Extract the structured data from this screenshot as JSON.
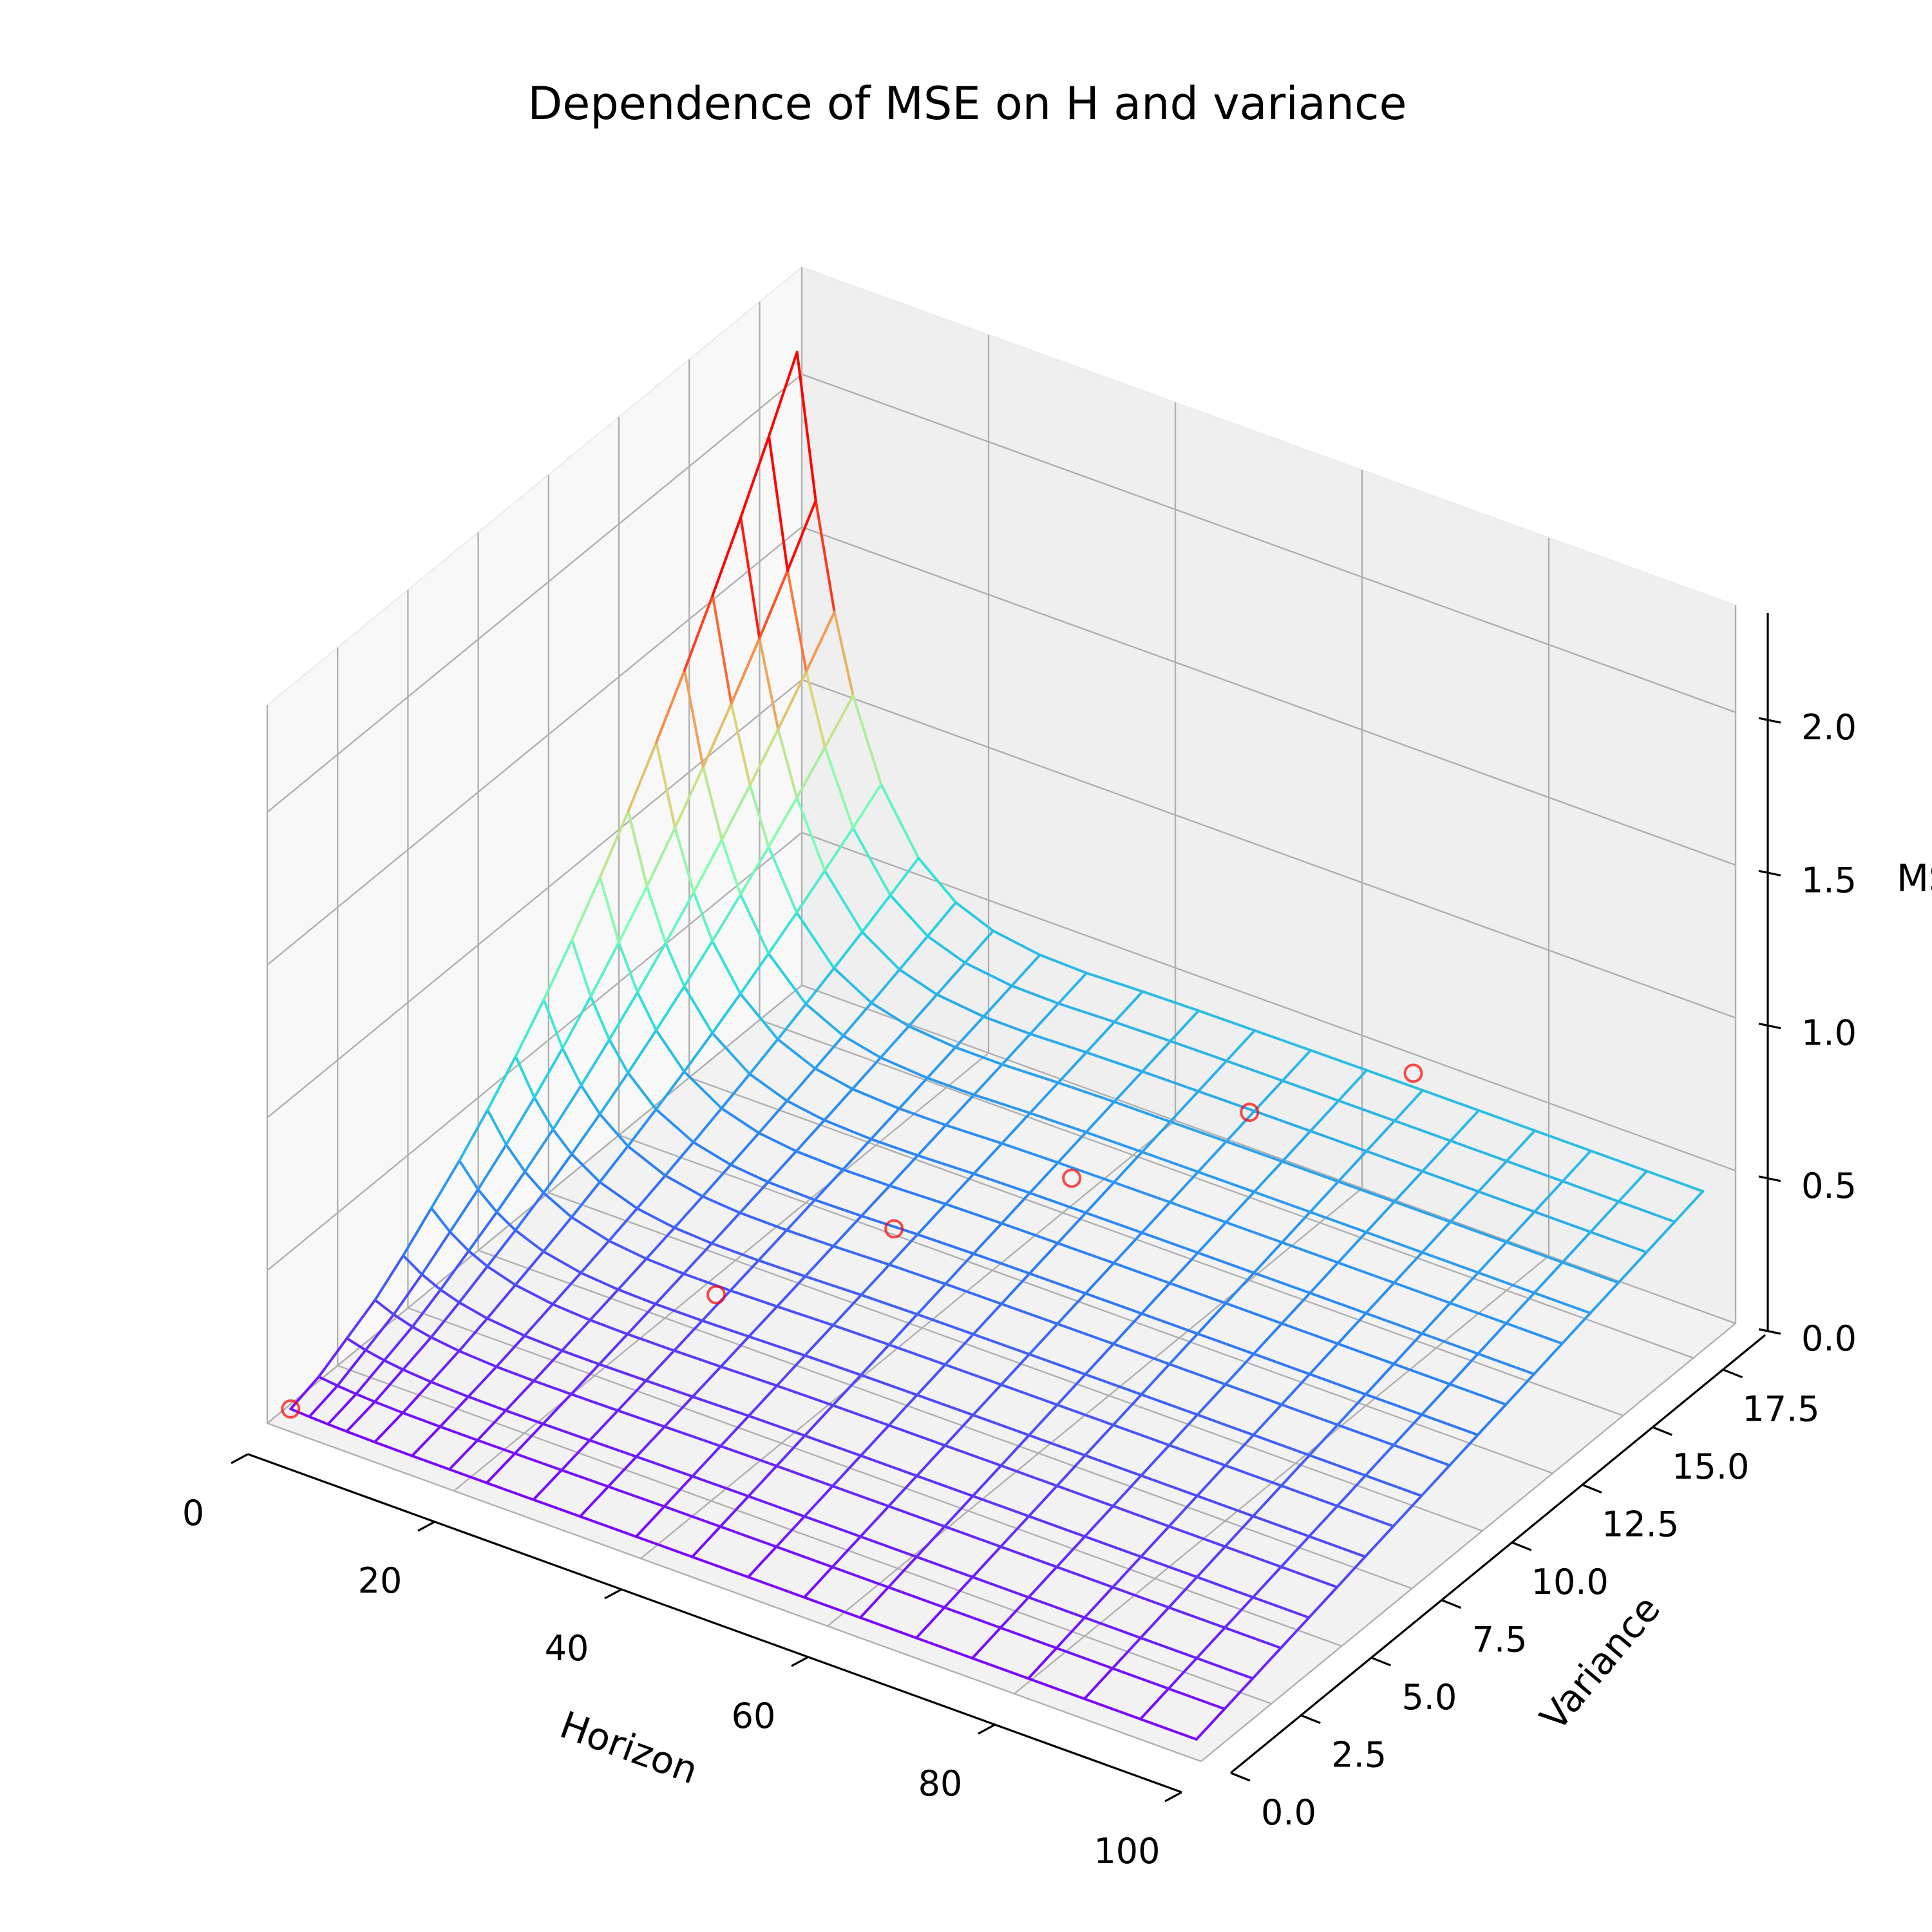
{
  "chart_data": {
    "type": "surface-3d",
    "title": "Dependence of MSE on H and variance",
    "xlabel": "Horizon",
    "ylabel": "Variance",
    "zlabel": "MSE",
    "xlim": [
      0,
      100
    ],
    "ylim": [
      0,
      19
    ],
    "zlim": [
      0,
      2.35
    ],
    "x_ticks": [
      "0",
      "20",
      "40",
      "60",
      "80",
      "100"
    ],
    "x_tick_values": [
      0,
      20,
      40,
      60,
      80,
      100
    ],
    "y_ticks": [
      "0.0",
      "2.5",
      "5.0",
      "7.5",
      "10.0",
      "12.5",
      "15.0",
      "17.5"
    ],
    "y_tick_values": [
      0,
      2.5,
      5,
      7.5,
      10,
      12.5,
      15,
      17.5
    ],
    "z_ticks": [
      "0.0",
      "0.5",
      "1.0",
      "1.5",
      "2.0"
    ],
    "z_tick_values": [
      0,
      0.5,
      1.0,
      1.5,
      2.0
    ],
    "grid": true,
    "colormap": "rainbow",
    "colormap_stops": [
      "#8000ff",
      "#2c7ef7",
      "#2adddd",
      "#80ffb4",
      "#d4dd80",
      "#ff7f40",
      "#ff0000"
    ],
    "color_range": [
      0,
      1.6
    ],
    "surface": {
      "horizon": [
        1,
        3,
        5,
        7,
        10,
        14,
        18,
        22,
        27,
        32,
        38,
        44,
        50,
        56,
        62,
        68,
        74,
        80,
        86,
        92,
        98
      ],
      "variance": [
        0.5,
        1.5,
        2.5,
        3.5,
        4.5,
        5.5,
        6.5,
        7.5,
        8.5,
        9.5,
        10.5,
        11.5,
        12.5,
        13.5,
        14.5,
        15.5,
        16.5,
        17.5,
        18.5
      ],
      "mse_peak_at_h1_by_variance": [
        0.02,
        0.05,
        0.1,
        0.15,
        0.22,
        0.3,
        0.38,
        0.47,
        0.57,
        0.68,
        0.8,
        0.93,
        1.07,
        1.22,
        1.38,
        1.55,
        1.73,
        1.92,
        2.12
      ],
      "mse_tail_at_h100": 0.4
    },
    "scatter_points": {
      "color": "#ff0000",
      "points": [
        {
          "horizon": 1,
          "variance": 0.5,
          "mse": 0.02
        },
        {
          "horizon": 30,
          "variance": 6.0,
          "mse": 0.3
        },
        {
          "horizon": 40,
          "variance": 9.0,
          "mse": 0.4
        },
        {
          "horizon": 50,
          "variance": 12.0,
          "mse": 0.45
        },
        {
          "horizon": 60,
          "variance": 15.0,
          "mse": 0.55
        },
        {
          "horizon": 70,
          "variance": 17.5,
          "mse": 0.6
        }
      ]
    }
  }
}
